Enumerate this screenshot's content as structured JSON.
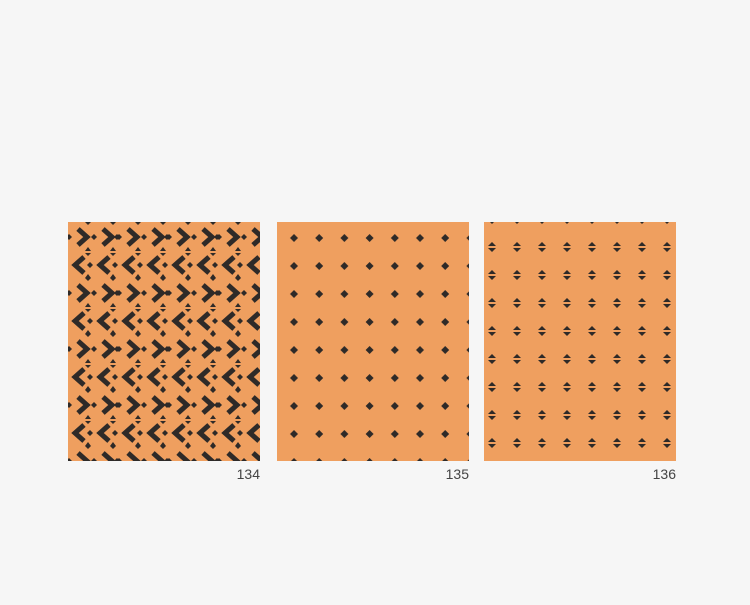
{
  "colors": {
    "panel": "#ef9f5f",
    "pattern": "#2e2a28",
    "background": "#f6f6f6"
  },
  "swatches": [
    {
      "number": "134",
      "pattern": "chevron-arrows"
    },
    {
      "number": "135",
      "pattern": "diamond-dots"
    },
    {
      "number": "136",
      "pattern": "triangle-pairs"
    }
  ]
}
